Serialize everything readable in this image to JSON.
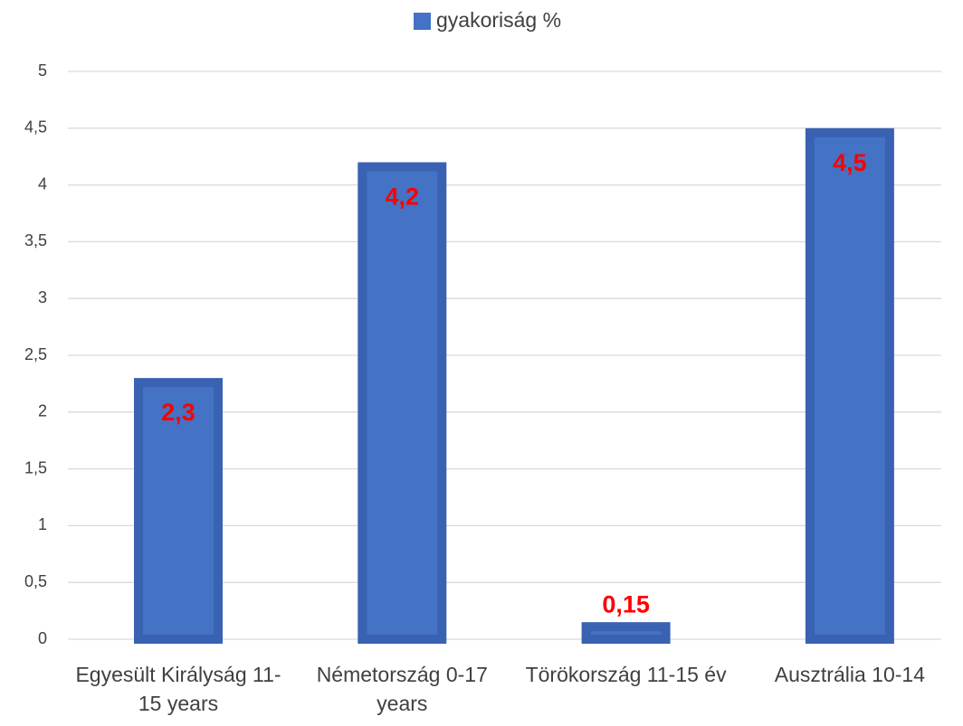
{
  "chart_data": {
    "type": "bar",
    "legend": "gyakoriság %",
    "categories": [
      "Egyesült Királyság 11-15 years",
      "Németország 0-17 years",
      "Törökország 11-15 év",
      "Ausztrália 10-14"
    ],
    "values": [
      2.3,
      4.2,
      0.15,
      4.5
    ],
    "value_labels": [
      "2,3",
      "4,2",
      "0,15",
      "4,5"
    ],
    "color": "#4472c4",
    "label_color": "#ff0000",
    "ylim": [
      0,
      5
    ],
    "yticks": [
      0,
      {
        "value": 0.5,
        "label": "0,5"
      },
      1,
      {
        "value": 1.5,
        "label": "1,5"
      },
      2,
      {
        "value": 2.5,
        "label": "2,5"
      },
      3,
      {
        "value": 3.5,
        "label": "3,5"
      },
      4,
      {
        "value": 4.5,
        "label": "4,5"
      },
      5
    ],
    "grid": true
  }
}
